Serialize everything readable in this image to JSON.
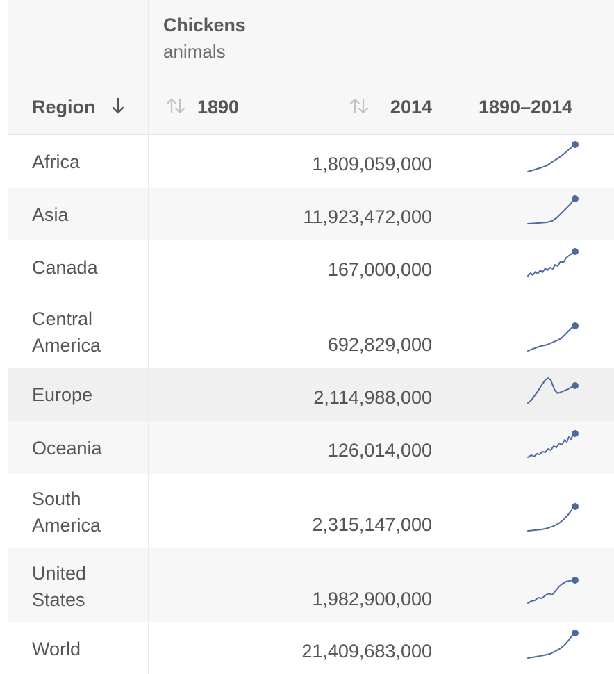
{
  "metric": {
    "title": "Chickens",
    "unit": "animals"
  },
  "columns": {
    "region": "Region",
    "year_start": "1890",
    "year_end": "2014",
    "range": "1890–2014"
  },
  "icons": {
    "region_sort": "arrow-down-icon",
    "year_sort": "sort-updown-icon"
  },
  "accent_color": "#4c6a9c",
  "rows": [
    {
      "region": "Africa",
      "value_1890": "",
      "value_2014": "1,809,059,000"
    },
    {
      "region": "Asia",
      "value_1890": "",
      "value_2014": "11,923,472,000"
    },
    {
      "region": "Canada",
      "value_1890": "",
      "value_2014": "167,000,000"
    },
    {
      "region": "Central America",
      "value_1890": "",
      "value_2014": "692,829,000"
    },
    {
      "region": "Europe",
      "value_1890": "",
      "value_2014": "2,114,988,000"
    },
    {
      "region": "Oceania",
      "value_1890": "",
      "value_2014": "126,014,000"
    },
    {
      "region": "South America",
      "value_1890": "",
      "value_2014": "2,315,147,000"
    },
    {
      "region": "United States",
      "value_1890": "",
      "value_2014": "1,982,900,000"
    },
    {
      "region": "World",
      "value_1890": "",
      "value_2014": "21,409,683,000"
    }
  ]
}
